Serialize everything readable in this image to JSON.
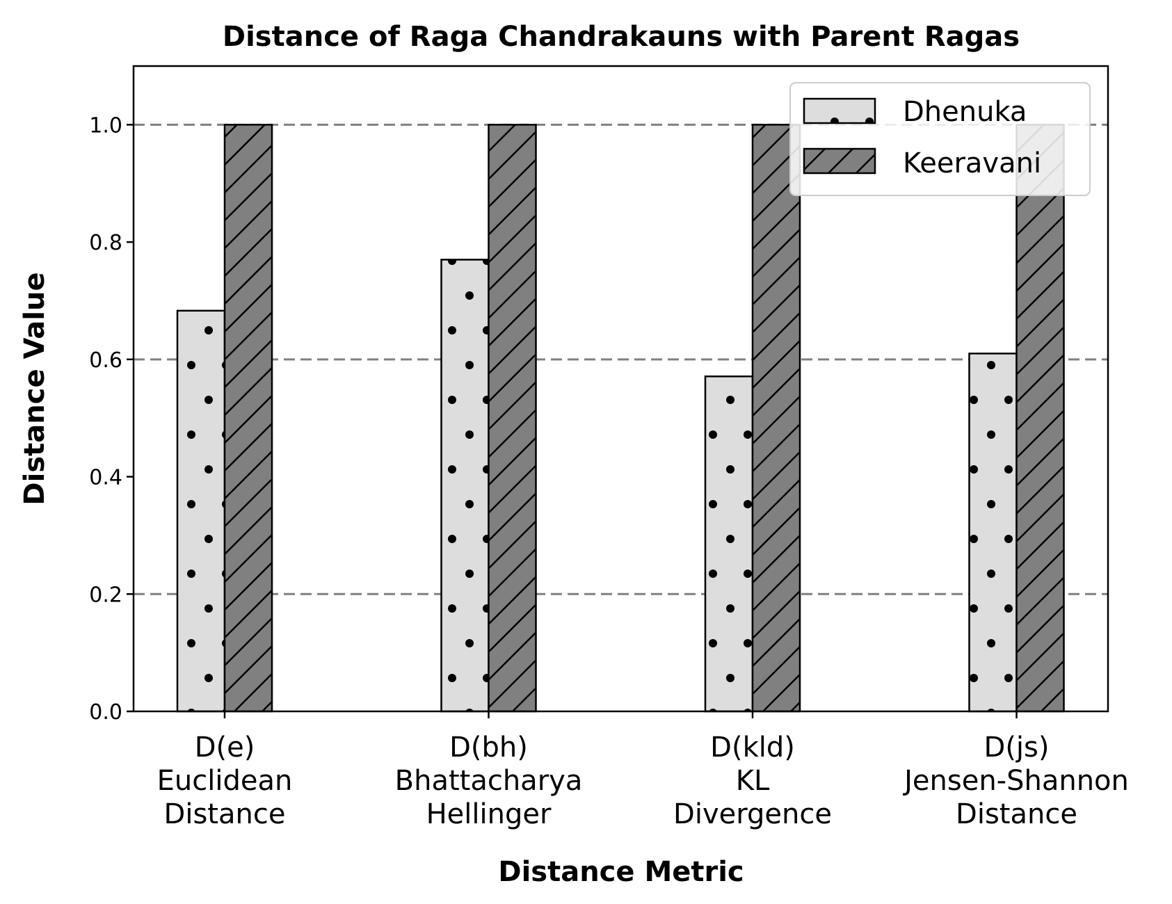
{
  "chart_data": {
    "type": "bar",
    "title": "Distance of Raga Chandrakauns with Parent Ragas",
    "xlabel": "Distance Metric",
    "ylabel": "Distance Value",
    "ylim": [
      0,
      1.1
    ],
    "yticks": [
      "0.0",
      "0.2",
      "0.4",
      "0.6",
      "0.8",
      "1.0"
    ],
    "categories": [
      [
        "D(e)",
        "Euclidean",
        "Distance"
      ],
      [
        "D(bh)",
        "Bhattacharya",
        "Hellinger"
      ],
      [
        "D(kld)",
        "KL",
        "Divergence"
      ],
      [
        "D(js)",
        "Jensen-Shannon",
        "Distance"
      ]
    ],
    "series": [
      {
        "name": "Dhenuka",
        "values": [
          0.683,
          0.77,
          0.571,
          0.61
        ],
        "color": "#dddddd",
        "hatch": "dots"
      },
      {
        "name": "Keeravani",
        "values": [
          1.0,
          1.0,
          1.0,
          1.0
        ],
        "color": "#808080",
        "hatch": "diagonal"
      }
    ],
    "grid": {
      "axis": "y",
      "style": "dashed",
      "color": "#808080",
      "values": [
        0.2,
        0.6,
        1.0
      ]
    },
    "legend": {
      "position": "top-right"
    }
  }
}
